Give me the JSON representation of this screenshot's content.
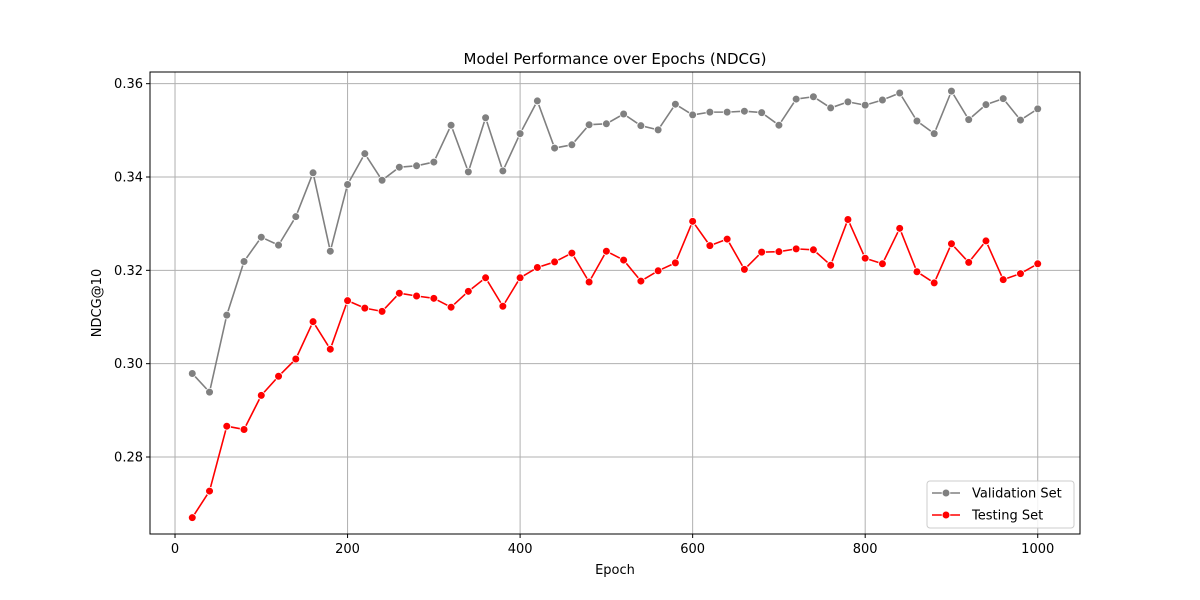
{
  "chart_data": {
    "type": "line",
    "title": "Model Performance over Epochs (NDCG)",
    "xlabel": "Epoch",
    "ylabel": "NDCG@10",
    "xlim": [
      -29,
      1049
    ],
    "ylim": [
      0.2635,
      0.3625
    ],
    "xticks": [
      0,
      200,
      400,
      600,
      800,
      1000
    ],
    "yticks": [
      0.28,
      0.3,
      0.32,
      0.34,
      0.36
    ],
    "ytick_labels": [
      "0.28",
      "0.30",
      "0.32",
      "0.34",
      "0.36"
    ],
    "grid": true,
    "legend_position": "lower-right",
    "x": [
      20,
      40,
      60,
      80,
      100,
      120,
      140,
      160,
      180,
      200,
      220,
      240,
      260,
      280,
      300,
      320,
      340,
      360,
      380,
      400,
      420,
      440,
      460,
      480,
      500,
      520,
      540,
      560,
      580,
      600,
      620,
      640,
      660,
      680,
      700,
      720,
      740,
      760,
      780,
      800,
      820,
      840,
      860,
      880,
      900,
      920,
      940,
      960,
      980,
      1000
    ],
    "series": [
      {
        "name": "Validation Set",
        "color": "#808080",
        "values": [
          0.2979,
          0.2939,
          0.3104,
          0.3219,
          0.3271,
          0.3254,
          0.3315,
          0.3409,
          0.3241,
          0.3384,
          0.345,
          0.3393,
          0.3421,
          0.3424,
          0.3432,
          0.3511,
          0.3411,
          0.3527,
          0.3413,
          0.3493,
          0.3563,
          0.3462,
          0.3469,
          0.3512,
          0.3514,
          0.3535,
          0.351,
          0.3501,
          0.3556,
          0.3533,
          0.3539,
          0.3539,
          0.3541,
          0.3538,
          0.3511,
          0.3567,
          0.3572,
          0.3548,
          0.3561,
          0.3554,
          0.3565,
          0.358,
          0.352,
          0.3493,
          0.3584,
          0.3523,
          0.3555,
          0.3568,
          0.3522,
          0.3546
        ]
      },
      {
        "name": "Testing Set",
        "color": "#ff0000",
        "values": [
          0.267,
          0.2727,
          0.2866,
          0.2859,
          0.2932,
          0.2973,
          0.301,
          0.309,
          0.3031,
          0.3135,
          0.3119,
          0.3112,
          0.3151,
          0.3145,
          0.314,
          0.3121,
          0.3155,
          0.3184,
          0.3123,
          0.3184,
          0.3206,
          0.3218,
          0.3237,
          0.3175,
          0.3241,
          0.3222,
          0.3177,
          0.3199,
          0.3216,
          0.3305,
          0.3253,
          0.3267,
          0.3202,
          0.3239,
          0.324,
          0.3246,
          0.3244,
          0.3211,
          0.3309,
          0.3226,
          0.3214,
          0.329,
          0.3197,
          0.3173,
          0.3257,
          0.3217,
          0.3263,
          0.318,
          0.3193,
          0.3214
        ]
      }
    ]
  }
}
